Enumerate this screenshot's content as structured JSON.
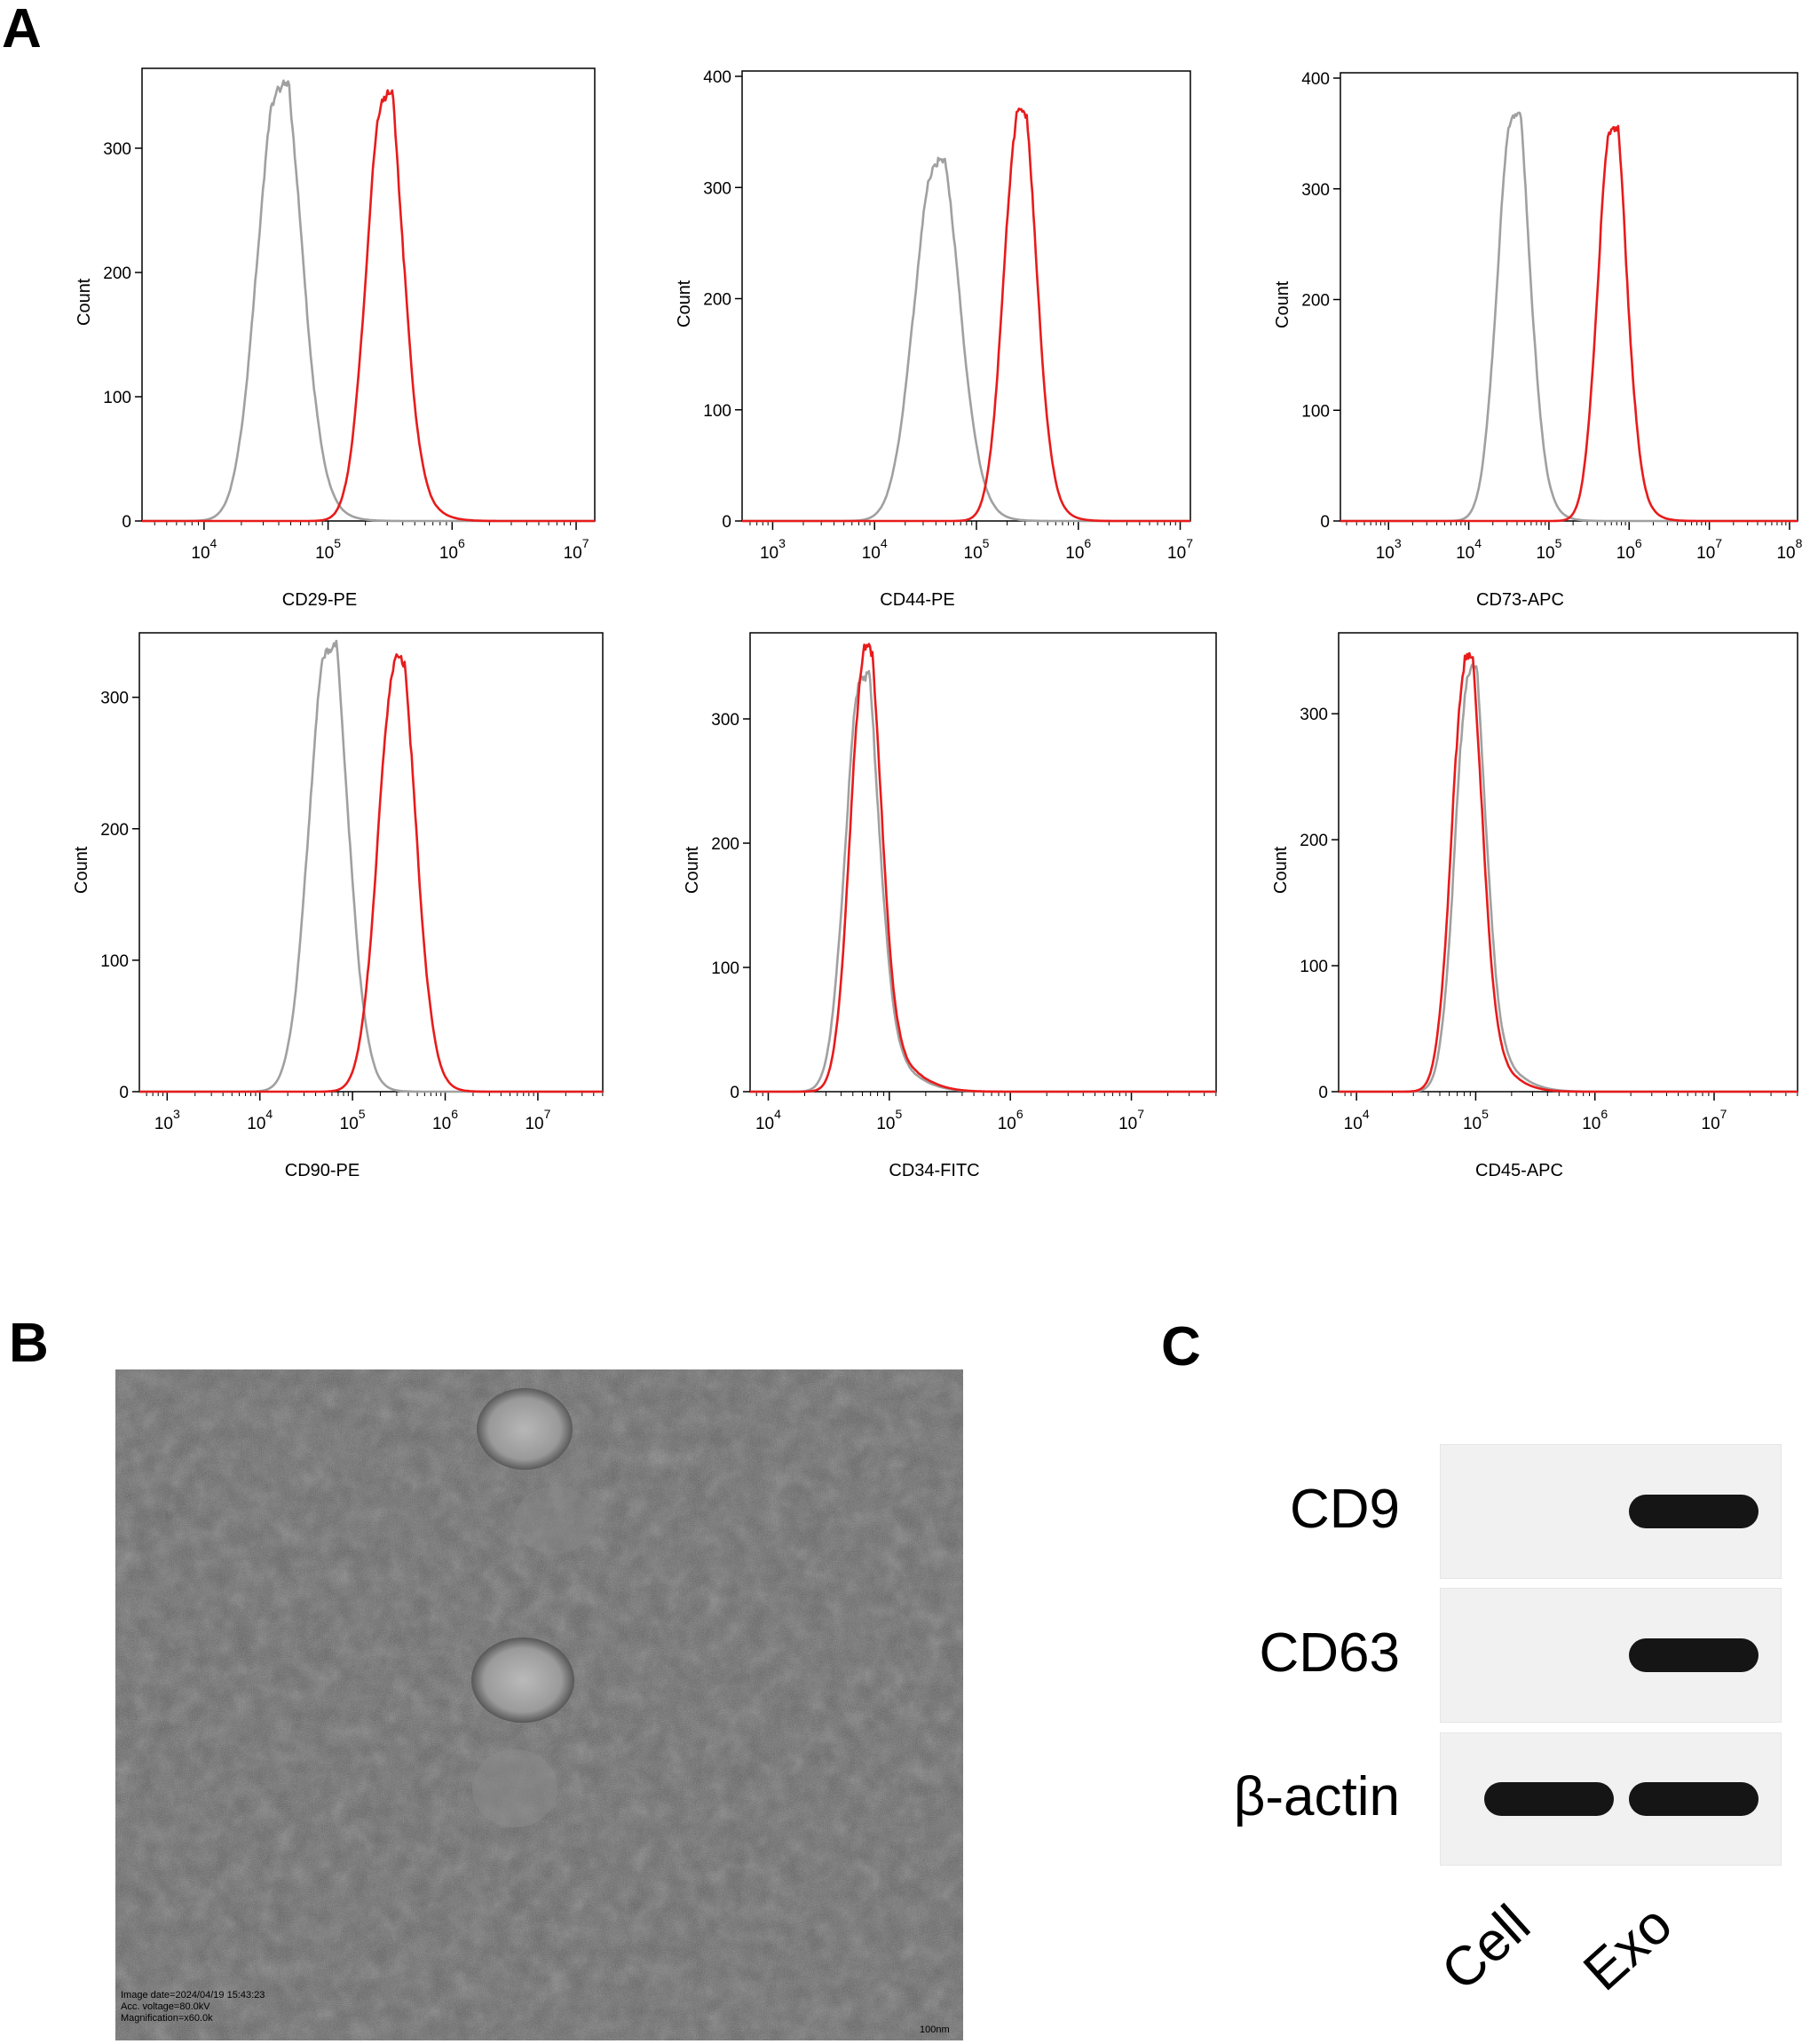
{
  "panels": {
    "A": "A",
    "B": "B",
    "C": "C"
  },
  "colors": {
    "control": "#a0a0a0",
    "sample": "#e81b1b"
  },
  "chart_data": [
    {
      "type": "line",
      "xlabel": "CD29-PE",
      "ylabel": "Count",
      "xscale": "log",
      "xlim_log10": [
        3.5,
        7.15
      ],
      "ylim": [
        0,
        360
      ],
      "xticks": [
        "10^4",
        "10^5",
        "10^6",
        "10^7"
      ],
      "xtick_values": [
        4,
        5,
        6,
        7
      ],
      "yticks": [
        0,
        100,
        200,
        300
      ],
      "series": [
        {
          "color": "#a0a0a0",
          "center_log10": 4.6,
          "peak": 350,
          "width": 0.17,
          "tail": 0.26
        },
        {
          "color": "#e81b1b",
          "center_log10": 5.45,
          "peak": 342,
          "width": 0.14,
          "tail": 0.24
        }
      ]
    },
    {
      "type": "line",
      "xlabel": "CD44-PE",
      "ylabel": "Count",
      "xscale": "log",
      "xlim_log10": [
        2.7,
        7.1
      ],
      "ylim": [
        0,
        400
      ],
      "xticks": [
        "10^3",
        "10^4",
        "10^5",
        "10^6",
        "10^7"
      ],
      "xtick_values": [
        3,
        4,
        5,
        6,
        7
      ],
      "yticks": [
        0,
        100,
        200,
        300,
        400
      ],
      "series": [
        {
          "color": "#a0a0a0",
          "center_log10": 4.6,
          "peak": 322,
          "width": 0.21,
          "tail": 0.3
        },
        {
          "color": "#e81b1b",
          "center_log10": 5.42,
          "peak": 368,
          "width": 0.15,
          "tail": 0.24
        }
      ]
    },
    {
      "type": "line",
      "xlabel": "CD73-APC",
      "ylabel": "Count",
      "xscale": "log",
      "xlim_log10": [
        2.4,
        8.1
      ],
      "ylim": [
        0,
        400
      ],
      "xticks": [
        "10^3",
        "10^4",
        "10^5",
        "10^6",
        "10^7",
        "10^8"
      ],
      "xtick_values": [
        3,
        4,
        5,
        6,
        7,
        8
      ],
      "yticks": [
        0,
        100,
        200,
        300,
        400
      ],
      "series": [
        {
          "color": "#a0a0a0",
          "center_log10": 4.55,
          "peak": 368,
          "width": 0.19,
          "tail": 0.3
        },
        {
          "color": "#e81b1b",
          "center_log10": 5.78,
          "peak": 356,
          "width": 0.17,
          "tail": 0.28
        }
      ]
    },
    {
      "type": "line",
      "xlabel": "CD90-PE",
      "ylabel": "Count",
      "xscale": "log",
      "xlim_log10": [
        2.7,
        7.7
      ],
      "ylim": [
        0,
        345
      ],
      "xticks": [
        "10^3",
        "10^4",
        "10^5",
        "10^6",
        "10^7"
      ],
      "xtick_values": [
        3,
        4,
        5,
        6,
        7
      ],
      "yticks": [
        0,
        100,
        200,
        300
      ],
      "series": [
        {
          "color": "#a0a0a0",
          "center_log10": 4.73,
          "peak": 338,
          "width": 0.2,
          "tail": 0.26
        },
        {
          "color": "#e81b1b",
          "center_log10": 5.47,
          "peak": 328,
          "width": 0.19,
          "tail": 0.26
        }
      ]
    },
    {
      "type": "line",
      "xlabel": "CD34-FITC",
      "ylabel": "Count",
      "xscale": "log",
      "xlim_log10": [
        3.85,
        7.7
      ],
      "ylim": [
        0,
        365
      ],
      "xticks": [
        "10^4",
        "10^5",
        "10^6",
        "10^7"
      ],
      "xtick_values": [
        4,
        5,
        6,
        7
      ],
      "yticks": [
        0,
        100,
        200,
        300
      ],
      "series": [
        {
          "color": "#a0a0a0",
          "center_log10": 4.77,
          "peak": 335,
          "width": 0.13,
          "tail": 0.3
        },
        {
          "color": "#e81b1b",
          "center_log10": 4.8,
          "peak": 355,
          "width": 0.12,
          "tail": 0.3
        }
      ]
    },
    {
      "type": "line",
      "xlabel": "CD45-APC",
      "ylabel": "Count",
      "xscale": "log",
      "xlim_log10": [
        3.85,
        7.7
      ],
      "ylim": [
        0,
        360
      ],
      "xticks": [
        "10^4",
        "10^5",
        "10^6",
        "10^7"
      ],
      "xtick_values": [
        4,
        5,
        6,
        7
      ],
      "yticks": [
        0,
        100,
        200,
        300
      ],
      "series": [
        {
          "color": "#a0a0a0",
          "center_log10": 4.95,
          "peak": 335,
          "width": 0.12,
          "tail": 0.28
        },
        {
          "color": "#e81b1b",
          "center_log10": 4.92,
          "peak": 343,
          "width": 0.12,
          "tail": 0.26
        }
      ]
    }
  ],
  "tem": {
    "meta": [
      "Image date=2024/04/19 15:43:23",
      "Acc. voltage=80.0kV",
      "Magnification=x60.0k"
    ],
    "scale_label": "100nm"
  },
  "western_blot": {
    "rows": [
      {
        "label": "CD9",
        "bands": [
          0.0,
          1.0
        ]
      },
      {
        "label": "CD63",
        "bands": [
          0.0,
          1.0
        ]
      },
      {
        "label": "β-actin",
        "bands": [
          1.0,
          1.0
        ]
      }
    ],
    "lanes": [
      "Cell",
      "Exo"
    ]
  }
}
